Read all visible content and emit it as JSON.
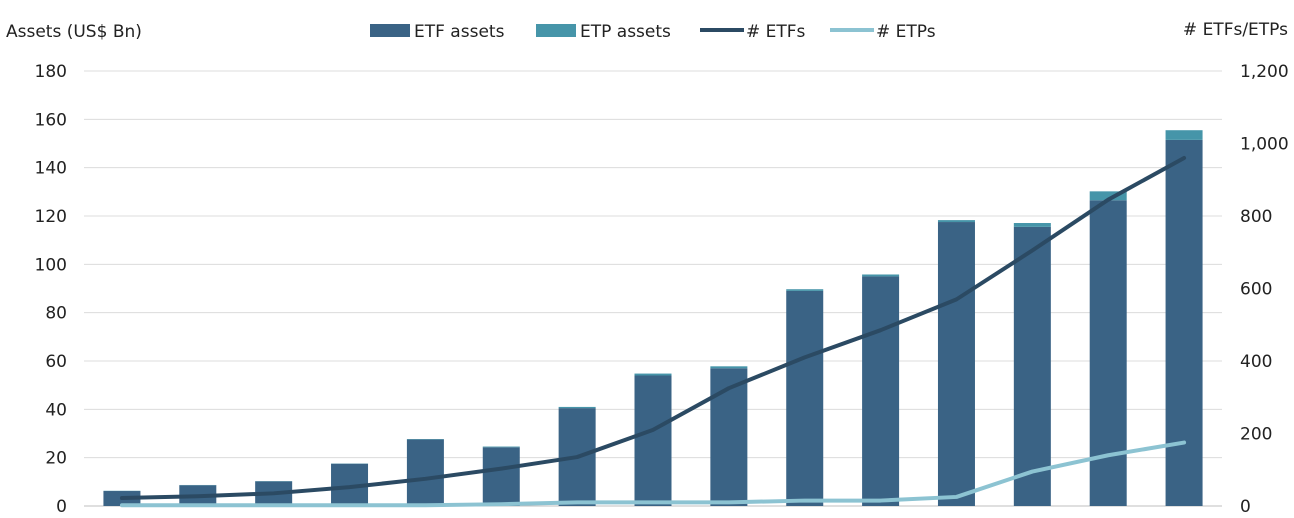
{
  "chart_data": {
    "type": "bar",
    "left_axis_label": "Assets (US$ Bn)",
    "right_axis_label": "# ETFs/ETPs",
    "left_ylim": [
      0,
      180
    ],
    "left_ticks": [
      "0",
      "20",
      "40",
      "60",
      "80",
      "100",
      "120",
      "140",
      "160",
      "180"
    ],
    "right_ylim": [
      0,
      1200
    ],
    "right_ticks": [
      "0",
      "200",
      "400",
      "600",
      "800",
      "1,000",
      "1,200"
    ],
    "grid": true,
    "legend_position": "top",
    "categories_count": 15,
    "series": [
      {
        "name": "ETF assets",
        "kind": "bar",
        "axis": "left",
        "color": "#3a6385",
        "values": [
          6.2,
          8.6,
          10.2,
          17.5,
          27.5,
          24.3,
          40.5,
          54.0,
          57.0,
          89.0,
          95.0,
          117.5,
          115.5,
          126.5,
          151.5
        ]
      },
      {
        "name": "ETP assets",
        "kind": "bar",
        "axis": "left",
        "color": "#4695a9",
        "values": [
          0.1,
          0.1,
          0.1,
          0.1,
          0.2,
          0.3,
          0.5,
          0.8,
          0.8,
          0.7,
          0.8,
          0.8,
          1.6,
          3.7,
          4.0
        ]
      },
      {
        "name": "# ETFs",
        "kind": "line",
        "axis": "right",
        "color": "#2b4a63",
        "values": [
          22,
          27,
          35,
          52,
          75,
          103,
          135,
          210,
          325,
          410,
          485,
          570,
          705,
          845,
          960
        ]
      },
      {
        "name": "# ETPs",
        "kind": "line",
        "axis": "right",
        "color": "#8cc3d2",
        "values": [
          2,
          2,
          2,
          2,
          2,
          5,
          10,
          10,
          10,
          15,
          15,
          25,
          95,
          140,
          175
        ]
      }
    ]
  }
}
